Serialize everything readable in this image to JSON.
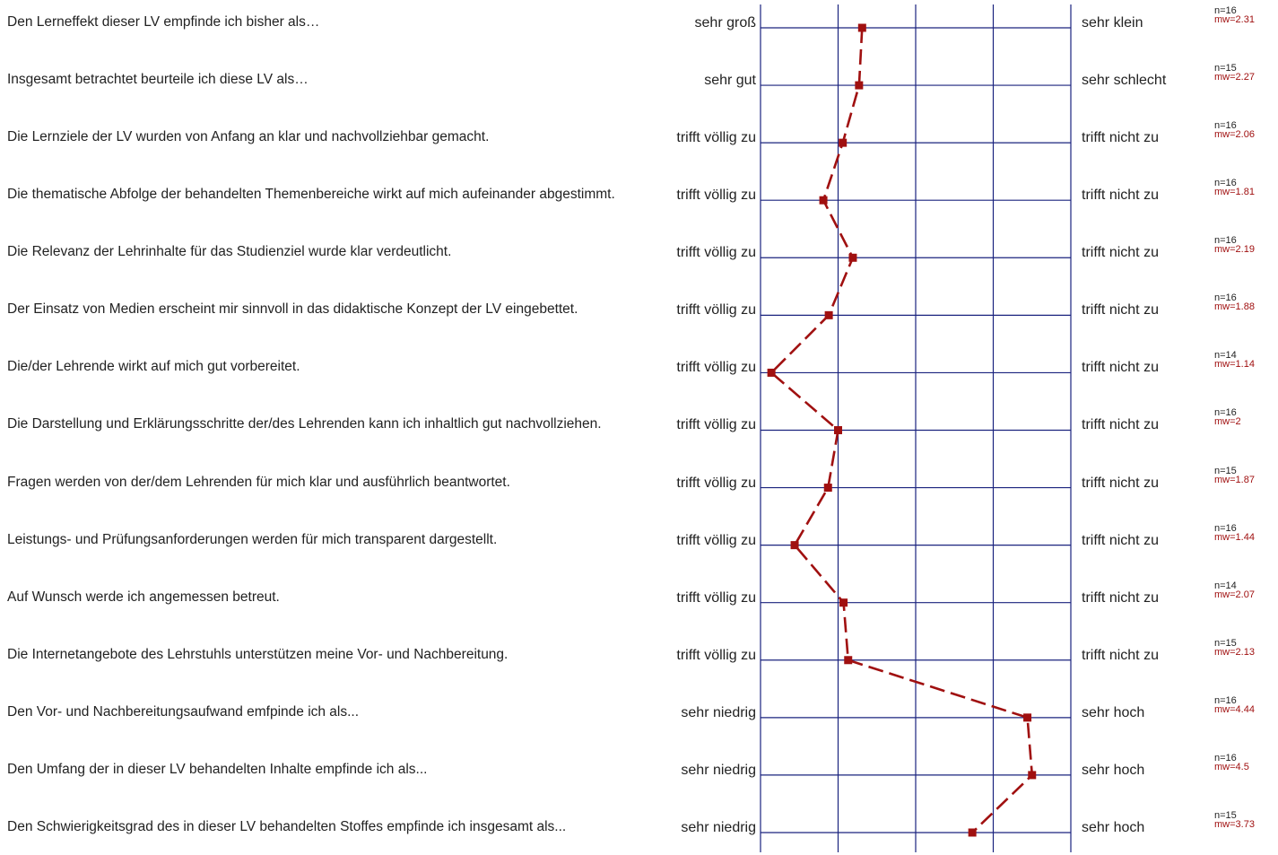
{
  "colors": {
    "axis": "#1a237e",
    "profile": "#a01010",
    "text": "#222222"
  },
  "chart_data": {
    "type": "line",
    "scale": [
      1,
      5
    ],
    "items": [
      {
        "question": "Den Lerneffekt dieser LV empfinde ich bisher als…",
        "left": "sehr groß",
        "right": "sehr klein",
        "n": "n=16",
        "mw_label": "mw=2.31",
        "mw": 2.31
      },
      {
        "question": "Insgesamt betrachtet beurteile ich diese LV als…",
        "left": "sehr gut",
        "right": "sehr schlecht",
        "n": "n=15",
        "mw_label": "mw=2.27",
        "mw": 2.27
      },
      {
        "question": "Die Lernziele der LV wurden von Anfang an klar und nachvollziehbar gemacht.",
        "left": "trifft völlig zu",
        "right": "trifft nicht zu",
        "n": "n=16",
        "mw_label": "mw=2.06",
        "mw": 2.06
      },
      {
        "question": "Die thematische Abfolge der behandelten Themenbereiche wirkt auf mich aufeinander abgestimmt.",
        "left": "trifft völlig zu",
        "right": "trifft nicht zu",
        "n": "n=16",
        "mw_label": "mw=1.81",
        "mw": 1.81
      },
      {
        "question": "Die Relevanz der Lehrinhalte für das Studienziel wurde klar verdeutlicht.",
        "left": "trifft völlig zu",
        "right": "trifft nicht zu",
        "n": "n=16",
        "mw_label": "mw=2.19",
        "mw": 2.19
      },
      {
        "question": "Der Einsatz von Medien erscheint mir sinnvoll in das didaktische Konzept der LV eingebettet.",
        "left": "trifft völlig zu",
        "right": "trifft nicht zu",
        "n": "n=16",
        "mw_label": "mw=1.88",
        "mw": 1.88
      },
      {
        "question": "Die/der Lehrende wirkt auf mich gut vorbereitet.",
        "left": "trifft völlig zu",
        "right": "trifft nicht zu",
        "n": "n=14",
        "mw_label": "mw=1.14",
        "mw": 1.14
      },
      {
        "question": "Die Darstellung und Erklärungsschritte der/des Lehrenden kann ich inhaltlich gut nachvollziehen.",
        "left": "trifft völlig zu",
        "right": "trifft nicht zu",
        "n": "n=16",
        "mw_label": "mw=2",
        "mw": 2
      },
      {
        "question": "Fragen werden von der/dem Lehrenden für mich klar und ausführlich beantwortet.",
        "left": "trifft völlig zu",
        "right": "trifft nicht zu",
        "n": "n=15",
        "mw_label": "mw=1.87",
        "mw": 1.87
      },
      {
        "question": "Leistungs- und Prüfungsanforderungen werden für mich transparent dargestellt.",
        "left": "trifft völlig zu",
        "right": "trifft nicht zu",
        "n": "n=16",
        "mw_label": "mw=1.44",
        "mw": 1.44
      },
      {
        "question": "Auf Wunsch werde ich angemessen betreut.",
        "left": "trifft völlig zu",
        "right": "trifft nicht zu",
        "n": "n=14",
        "mw_label": "mw=2.07",
        "mw": 2.07
      },
      {
        "question": "Die Internetangebote des Lehrstuhls unterstützen meine Vor- und Nachbereitung.",
        "left": "trifft völlig zu",
        "right": "trifft nicht zu",
        "n": "n=15",
        "mw_label": "mw=2.13",
        "mw": 2.13
      },
      {
        "question": "Den Vor- und Nachbereitungsaufwand  emfpinde ich als...",
        "left": "sehr niedrig",
        "right": "sehr hoch",
        "n": "n=16",
        "mw_label": "mw=4.44",
        "mw": 4.44
      },
      {
        "question": "Den Umfang der in dieser LV behandelten Inhalte empfinde ich als...",
        "left": "sehr niedrig",
        "right": "sehr hoch",
        "n": "n=16",
        "mw_label": "mw=4.5",
        "mw": 4.5
      },
      {
        "question": "Den Schwierigkeitsgrad des in dieser LV behandelten Stoffes empfinde ich insgesamt als...",
        "left": "sehr niedrig",
        "right": "sehr hoch",
        "n": "n=15",
        "mw_label": "mw=3.73",
        "mw": 3.73
      }
    ]
  }
}
